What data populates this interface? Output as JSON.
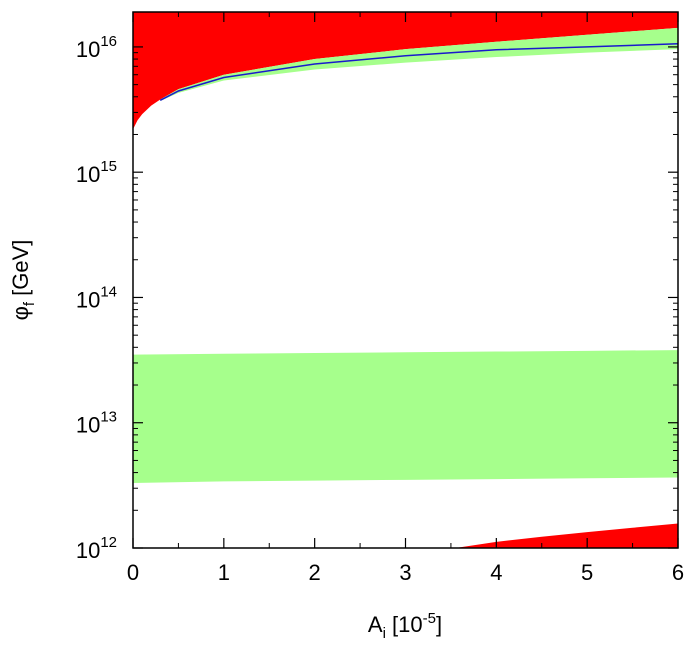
{
  "chart_data": {
    "type": "area",
    "xlabel": {
      "main": "A",
      "sub": "i",
      "rest": " [10",
      "sup": "-5",
      "end": "]"
    },
    "ylabel": {
      "main": "φ",
      "sub": "f",
      "rest": " [GeV]"
    },
    "xlim": [
      0,
      6
    ],
    "ylim": [
      1000000000000.0,
      1.9e+16
    ],
    "yscale": "log",
    "grid": false,
    "legend": "none",
    "x_ticks": [
      {
        "value": 0,
        "label": "0"
      },
      {
        "value": 1,
        "label": "1"
      },
      {
        "value": 2,
        "label": "2"
      },
      {
        "value": 3,
        "label": "3"
      },
      {
        "value": 4,
        "label": "4"
      },
      {
        "value": 5,
        "label": "5"
      },
      {
        "value": 6,
        "label": "6"
      }
    ],
    "y_ticks": [
      {
        "value": 1000000000000.0,
        "base": "10",
        "exp": "12"
      },
      {
        "value": 10000000000000.0,
        "base": "10",
        "exp": "13"
      },
      {
        "value": 100000000000000.0,
        "base": "10",
        "exp": "14"
      },
      {
        "value": 1000000000000000.0,
        "base": "10",
        "exp": "15"
      },
      {
        "value": 1e+16,
        "base": "10",
        "exp": "16"
      }
    ],
    "colors": {
      "red": "#ff0000",
      "green": "#a6ff8c",
      "blue": "#1a1acc"
    },
    "series": [
      {
        "kind": "red-region-upper",
        "x": [
          0,
          0.05,
          0.1,
          0.2,
          0.3,
          0.5,
          1,
          2,
          3,
          4,
          5,
          6
        ],
        "lower": [
          2200000000000000.0,
          2600000000000000.0,
          2900000000000000.0,
          3400000000000000.0,
          3800000000000000.0,
          4600000000000000.0,
          6000000000000000.0,
          8000000000000000.0,
          9600000000000000.0,
          1.1e+16,
          1.25e+16,
          1.42e+16
        ],
        "upper": [
          1.9e+16,
          1.9e+16,
          1.9e+16,
          1.9e+16,
          1.9e+16,
          1.9e+16,
          1.9e+16,
          1.9e+16,
          1.9e+16,
          1.9e+16,
          1.9e+16,
          1.9e+16
        ]
      },
      {
        "kind": "green-band-upper",
        "x": [
          0.3,
          0.5,
          1,
          2,
          3,
          4,
          5,
          6
        ],
        "lower": [
          3700000000000000.0,
          4300000000000000.0,
          5400000000000000.0,
          6600000000000000.0,
          7500000000000000.0,
          8300000000000000.0,
          9000000000000000.0,
          9600000000000000.0
        ],
        "upper": [
          3800000000000000.0,
          4600000000000000.0,
          6000000000000000.0,
          8000000000000000.0,
          9600000000000000.0,
          1.1e+16,
          1.25e+16,
          1.42e+16
        ]
      },
      {
        "kind": "green-band-lower",
        "x": [
          0,
          1,
          2,
          3,
          4,
          5,
          6
        ],
        "lower": [
          3300000000000.0,
          3400000000000.0,
          3450000000000.0,
          3500000000000.0,
          3550000000000.0,
          3600000000000.0,
          3650000000000.0
        ],
        "upper": [
          35000000000000.0,
          35500000000000.0,
          36000000000000.0,
          36500000000000.0,
          37000000000000.0,
          37500000000000.0,
          38000000000000.0
        ]
      },
      {
        "kind": "red-region-lower",
        "x": [
          3.55,
          4,
          4.5,
          5,
          5.5,
          6
        ],
        "lower": [
          1000000000000.0,
          1000000000000.0,
          1000000000000.0,
          1000000000000.0,
          1000000000000.0,
          1000000000000.0
        ],
        "upper": [
          1000000000000.0,
          1120000000000.0,
          1230000000000.0,
          1340000000000.0,
          1450000000000.0,
          1570000000000.0
        ]
      },
      {
        "kind": "blue-line",
        "x": [
          0.3,
          0.5,
          1,
          2,
          3,
          4,
          5,
          6
        ],
        "y": [
          3750000000000000.0,
          4450000000000000.0,
          5700000000000000.0,
          7300000000000000.0,
          8500000000000000.0,
          9500000000000000.0,
          1e+16,
          1.06e+16
        ]
      }
    ]
  }
}
